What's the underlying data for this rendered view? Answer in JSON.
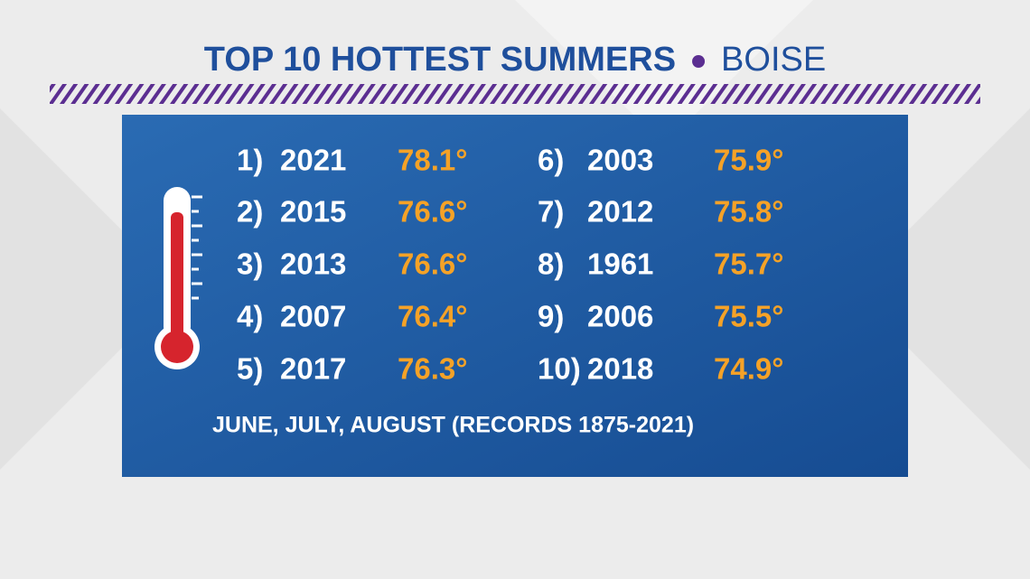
{
  "header": {
    "title": "TOP 10 HOTTEST SUMMERS",
    "location": "BOISE"
  },
  "entries": [
    {
      "rank": "1)",
      "year": "2021",
      "temp": "78.1°"
    },
    {
      "rank": "2)",
      "year": "2015",
      "temp": "76.6°"
    },
    {
      "rank": "3)",
      "year": "2013",
      "temp": "76.6°"
    },
    {
      "rank": "4)",
      "year": "2007",
      "temp": "76.4°"
    },
    {
      "rank": "5)",
      "year": "2017",
      "temp": "76.3°"
    },
    {
      "rank": "6)",
      "year": "2003",
      "temp": "75.9°"
    },
    {
      "rank": "7)",
      "year": "2012",
      "temp": "75.8°"
    },
    {
      "rank": "8)",
      "year": "1961",
      "temp": "75.7°"
    },
    {
      "rank": "9)",
      "year": "2006",
      "temp": "75.5°"
    },
    {
      "rank": "10)",
      "year": "2018",
      "temp": "74.9°"
    }
  ],
  "footnote": "JUNE, JULY, AUGUST (RECORDS 1875-2021)"
}
